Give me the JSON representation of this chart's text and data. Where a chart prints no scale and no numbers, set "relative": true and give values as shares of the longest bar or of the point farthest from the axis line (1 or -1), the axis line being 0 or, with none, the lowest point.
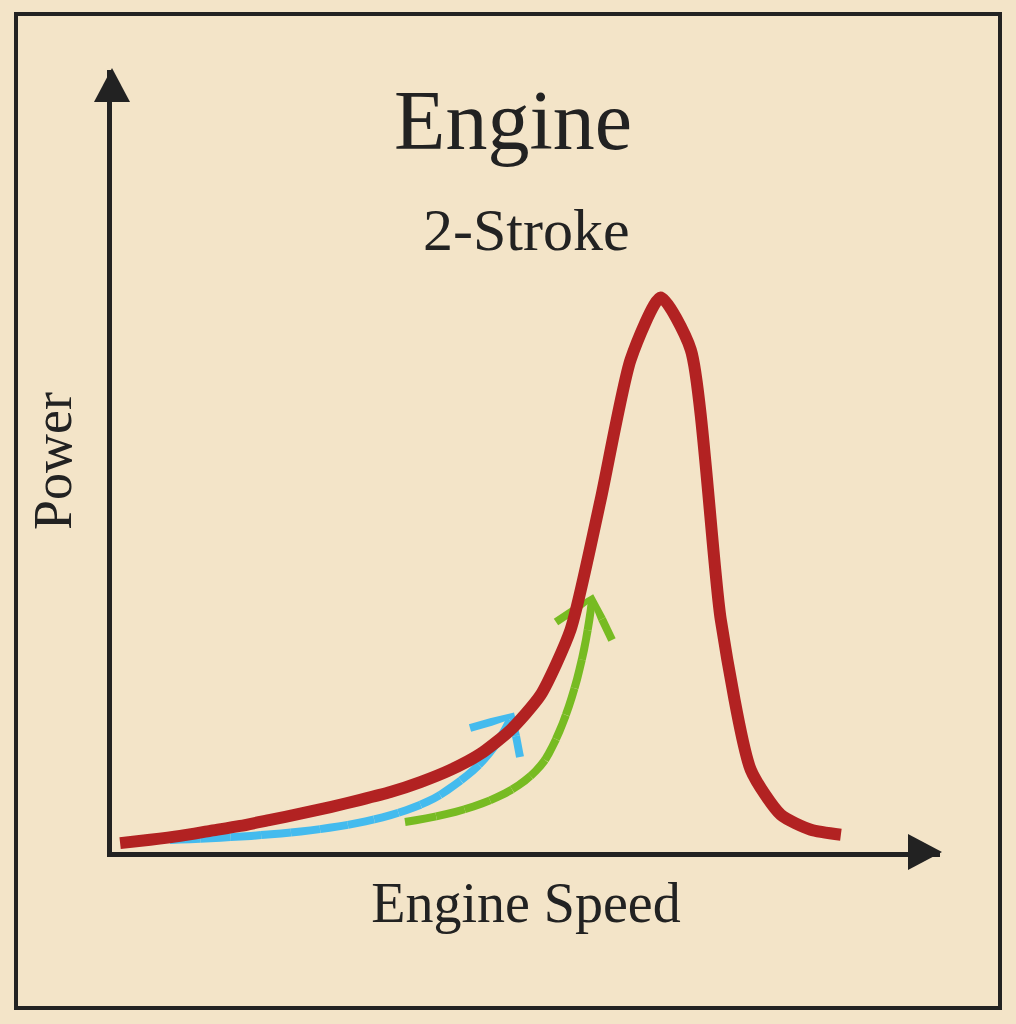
{
  "chart_data": {
    "type": "line",
    "title": "Engine",
    "subtitle": "2-Stroke",
    "xlabel": "Engine Speed",
    "ylabel": "Power",
    "relative": true,
    "tick_labels": false,
    "marker": "none",
    "legend": false,
    "categories": [
      null,
      null,
      null,
      null,
      null,
      null,
      null,
      null,
      null,
      null,
      null,
      null,
      null,
      null,
      null,
      null,
      null,
      null,
      null,
      null,
      null,
      null,
      null,
      null,
      null
    ],
    "series": [
      {
        "color": "#b22222",
        "values": [
          0.016,
          0.022,
          0.029,
          0.038,
          0.047,
          0.058,
          0.069,
          0.081,
          0.094,
          0.108,
          0.126,
          0.148,
          0.177,
          0.22,
          0.283,
          0.401,
          0.635,
          0.888,
          1.0,
          0.906,
          0.419,
          0.148,
          0.067,
          0.04,
          0.031
        ]
      }
    ]
  }
}
